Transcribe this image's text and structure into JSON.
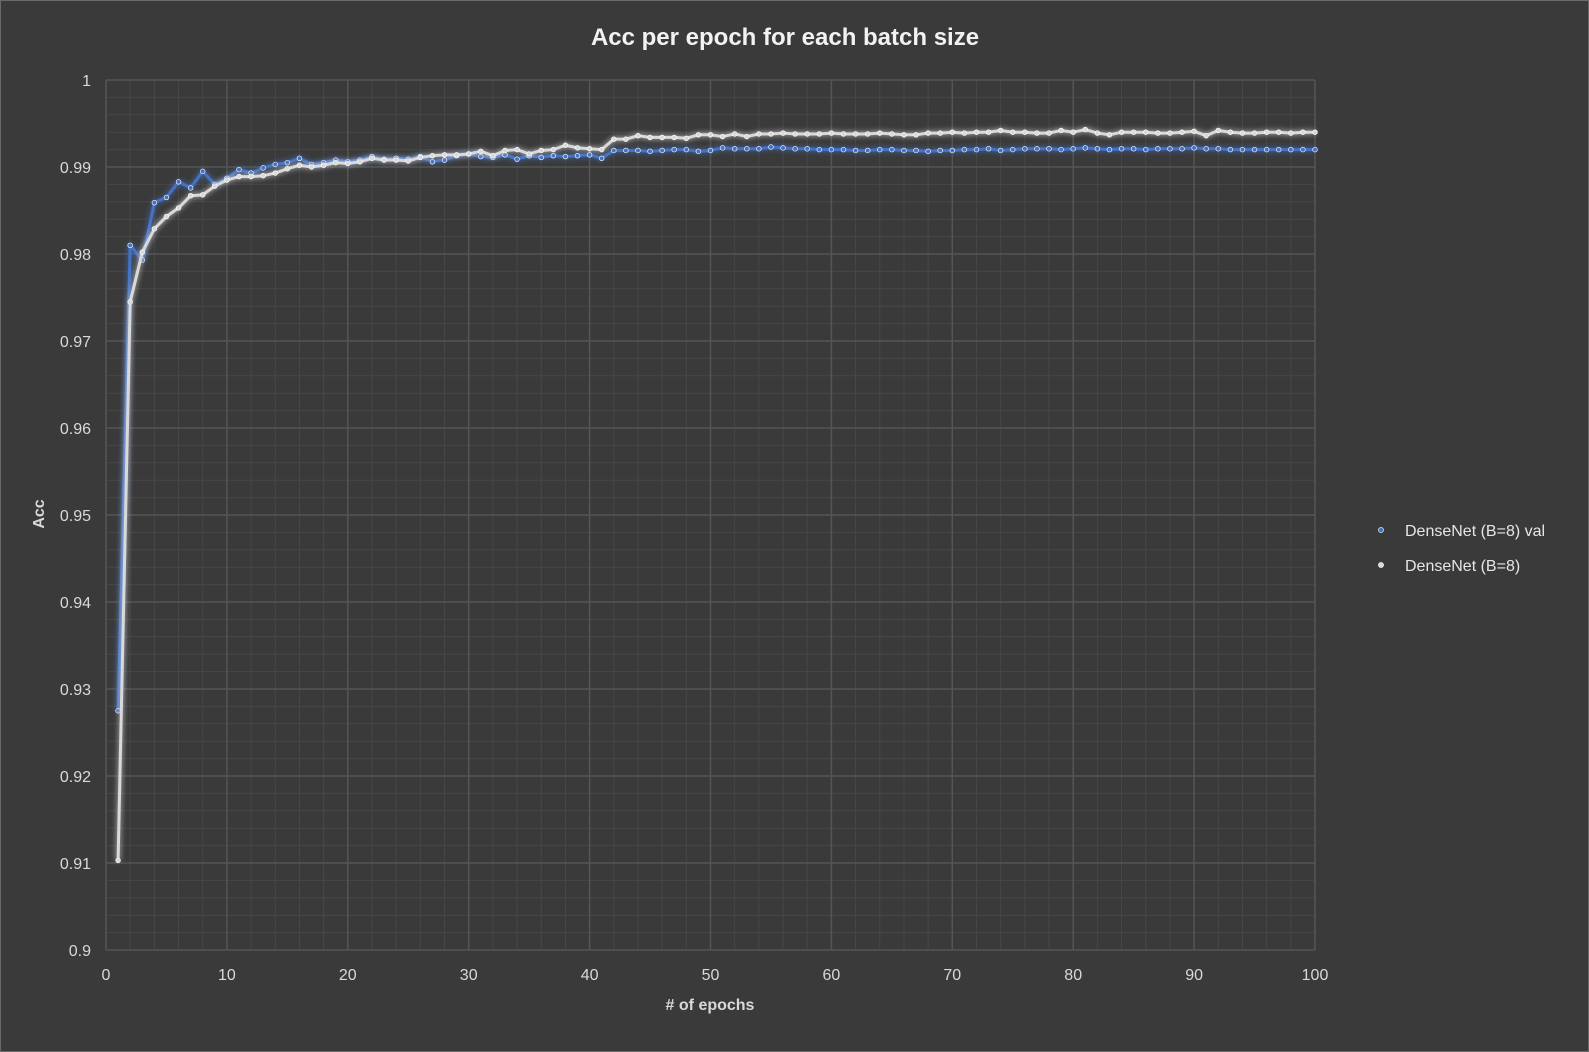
{
  "colors": {
    "background": "#3a3a3a",
    "plot_background": "#3a3a3a",
    "gridline": "#555555",
    "text": "#d9d9d9",
    "series_val": "#4472c4",
    "series_train": "#d9d9d9"
  },
  "chart_data": {
    "type": "line",
    "title": "Acc per epoch for each batch size",
    "xlabel": "# of epochs",
    "ylabel": "Acc",
    "xlim": [
      0,
      100
    ],
    "ylim": [
      0.9,
      1
    ],
    "xticks": [
      "0",
      "10",
      "20",
      "30",
      "40",
      "50",
      "60",
      "70",
      "80",
      "90",
      "100"
    ],
    "yticks": [
      "0.9",
      "0.91",
      "0.92",
      "0.93",
      "0.94",
      "0.95",
      "0.96",
      "0.97",
      "0.98",
      "0.99",
      "1"
    ],
    "grid": true,
    "legend_position": "right",
    "x": [
      1,
      2,
      3,
      4,
      5,
      6,
      7,
      8,
      9,
      10,
      11,
      12,
      13,
      14,
      15,
      16,
      17,
      18,
      19,
      20,
      21,
      22,
      23,
      24,
      25,
      26,
      27,
      28,
      29,
      30,
      31,
      32,
      33,
      34,
      35,
      36,
      37,
      38,
      39,
      40,
      41,
      42,
      43,
      44,
      45,
      46,
      47,
      48,
      49,
      50,
      51,
      52,
      53,
      54,
      55,
      56,
      57,
      58,
      59,
      60,
      61,
      62,
      63,
      64,
      65,
      66,
      67,
      68,
      69,
      70,
      71,
      72,
      73,
      74,
      75,
      76,
      77,
      78,
      79,
      80,
      81,
      82,
      83,
      84,
      85,
      86,
      87,
      88,
      89,
      90,
      91,
      92,
      93,
      94,
      95,
      96,
      97,
      98,
      99,
      100
    ],
    "series": [
      {
        "name": "DenseNet (B=8) val",
        "color": "#4472c4",
        "values": [
          0.9275,
          0.981,
          0.9793,
          0.9859,
          0.9865,
          0.9883,
          0.9876,
          0.9895,
          0.988,
          0.9887,
          0.9897,
          0.9893,
          0.9899,
          0.9903,
          0.9905,
          0.991,
          0.9903,
          0.9905,
          0.9908,
          0.9906,
          0.9908,
          0.9912,
          0.9909,
          0.991,
          0.9909,
          0.9912,
          0.9906,
          0.9908,
          0.9913,
          0.9915,
          0.9912,
          0.9911,
          0.9914,
          0.9909,
          0.9913,
          0.9911,
          0.9913,
          0.9912,
          0.9913,
          0.9914,
          0.991,
          0.9919,
          0.9919,
          0.9919,
          0.9918,
          0.9919,
          0.992,
          0.992,
          0.9918,
          0.9919,
          0.9922,
          0.9921,
          0.9921,
          0.9921,
          0.9923,
          0.9922,
          0.9921,
          0.9921,
          0.992,
          0.992,
          0.992,
          0.9919,
          0.9919,
          0.992,
          0.992,
          0.9919,
          0.9919,
          0.9918,
          0.9919,
          0.9919,
          0.992,
          0.992,
          0.9921,
          0.9919,
          0.992,
          0.9921,
          0.9921,
          0.9921,
          0.992,
          0.9921,
          0.9922,
          0.9921,
          0.992,
          0.9921,
          0.9921,
          0.992,
          0.9921,
          0.9921,
          0.9921,
          0.9922,
          0.9921,
          0.9921,
          0.992,
          0.992,
          0.992,
          0.992,
          0.992,
          0.992,
          0.992,
          0.992
        ]
      },
      {
        "name": "DenseNet (B=8)",
        "color": "#d9d9d9",
        "values": [
          0.9103,
          0.9745,
          0.9802,
          0.9829,
          0.9843,
          0.9853,
          0.9867,
          0.9868,
          0.9878,
          0.9885,
          0.9889,
          0.9889,
          0.989,
          0.9893,
          0.9898,
          0.9902,
          0.99,
          0.9902,
          0.9905,
          0.9904,
          0.9906,
          0.991,
          0.9908,
          0.9908,
          0.9907,
          0.9911,
          0.9913,
          0.9914,
          0.9914,
          0.9915,
          0.9918,
          0.9913,
          0.9919,
          0.992,
          0.9915,
          0.9919,
          0.992,
          0.9925,
          0.9922,
          0.9921,
          0.992,
          0.9932,
          0.9932,
          0.9936,
          0.9934,
          0.9934,
          0.9934,
          0.9933,
          0.9937,
          0.9937,
          0.9935,
          0.9938,
          0.9935,
          0.9938,
          0.9938,
          0.9939,
          0.9938,
          0.9938,
          0.9938,
          0.9939,
          0.9938,
          0.9938,
          0.9938,
          0.9939,
          0.9938,
          0.9937,
          0.9937,
          0.9939,
          0.9939,
          0.994,
          0.9939,
          0.994,
          0.994,
          0.9942,
          0.994,
          0.994,
          0.9939,
          0.9939,
          0.9942,
          0.994,
          0.9943,
          0.9939,
          0.9937,
          0.994,
          0.994,
          0.994,
          0.9939,
          0.9939,
          0.994,
          0.9941,
          0.9936,
          0.9942,
          0.994,
          0.9939,
          0.9939,
          0.994,
          0.994,
          0.9939,
          0.994,
          0.994
        ]
      }
    ]
  }
}
